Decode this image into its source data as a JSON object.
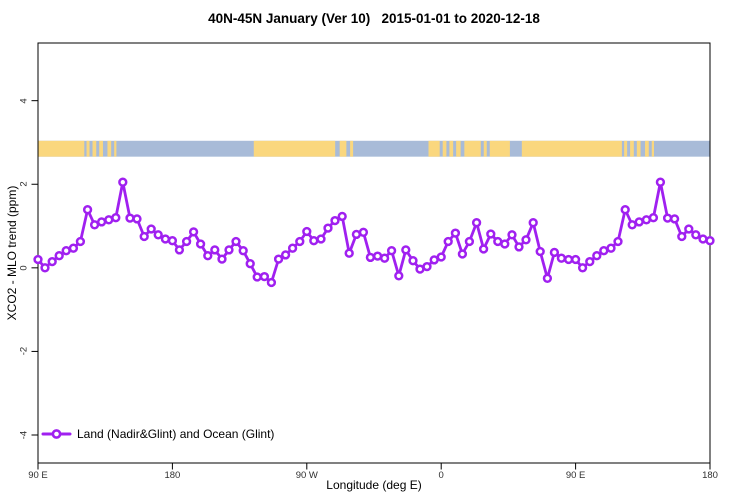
{
  "window_title": "40N-45N January (Ver 10)   2015-01-01 to 2020-12-18",
  "chart_data": {
    "type": "line",
    "title": "40N-45N January (Ver 10)   2015-01-01 to 2020-12-18",
    "xlabel": "Longitude (deg E)",
    "ylabel": "XCO2 - MLO trend (ppm)",
    "xlim": [
      90,
      540
    ],
    "ylim": [
      -4.67,
      5.38
    ],
    "grid": false,
    "x_ticks": [
      {
        "value": 90,
        "label": "90 E"
      },
      {
        "value": 180,
        "label": "180"
      },
      {
        "value": 270,
        "label": "90 W"
      },
      {
        "value": 360,
        "label": "0"
      },
      {
        "value": 450,
        "label": "90 E"
      },
      {
        "value": 540,
        "label": "180"
      }
    ],
    "y_ticks": [
      {
        "value": 4,
        "label": "4"
      },
      {
        "value": 2,
        "label": "2"
      },
      {
        "value": 0,
        "label": "0"
      },
      {
        "value": -2,
        "label": "-2"
      },
      {
        "value": -4,
        "label": "-4"
      }
    ],
    "series": [
      {
        "name": "Land (Nadir&Glint) and Ocean (Glint)",
        "color": "#A020F0",
        "marker": "open-circle",
        "x": [
          90,
          94.7,
          99.5,
          104.2,
          108.9,
          113.7,
          118.4,
          123.2,
          127.9,
          132.6,
          137.4,
          142.1,
          146.8,
          151.6,
          156.3,
          161.1,
          165.8,
          170.5,
          175.3,
          180,
          184.7,
          189.5,
          194.2,
          198.9,
          203.7,
          208.4,
          213.2,
          217.9,
          222.6,
          227.4,
          232.1,
          236.8,
          241.6,
          246.3,
          251.1,
          255.8,
          260.5,
          265.3,
          270,
          274.7,
          279.5,
          284.2,
          288.9,
          293.7,
          298.4,
          303.2,
          307.9,
          312.6,
          317.4,
          322.1,
          326.8,
          331.6,
          336.3,
          341.1,
          345.8,
          350.5,
          355.3,
          360,
          364.7,
          369.5,
          374.2,
          378.9,
          383.7,
          388.4,
          393.2,
          397.9,
          402.6,
          407.4,
          412.1,
          416.8,
          421.6,
          426.3,
          431.1,
          435.8,
          440.5,
          445.3,
          450,
          454.7,
          459.5,
          464.2,
          468.9,
          473.7,
          478.4,
          483.2,
          487.9,
          492.6,
          497.4,
          502.1,
          506.8,
          511.6,
          516.3,
          521.1,
          525.8,
          530.5,
          535.3,
          540
        ],
        "y": [
          0.2,
          0,
          0.15,
          0.29,
          0.41,
          0.47,
          0.63,
          1.39,
          1.03,
          1.1,
          1.15,
          1.2,
          2.05,
          1.19,
          1.17,
          0.75,
          0.93,
          0.79,
          0.69,
          0.65,
          0.43,
          0.63,
          0.86,
          0.57,
          0.29,
          0.43,
          0.21,
          0.43,
          0.63,
          0.41,
          0.1,
          -0.22,
          -0.21,
          -0.35,
          0.21,
          0.31,
          0.47,
          0.63,
          0.87,
          0.65,
          0.69,
          0.95,
          1.13,
          1.23,
          0.35,
          0.8,
          0.85,
          0.25,
          0.28,
          0.23,
          0.41,
          -0.19,
          0.43,
          0.17,
          -0.03,
          0.03,
          0.19,
          0.26,
          0.63,
          0.83,
          0.33,
          0.63,
          1.08,
          0.45,
          0.81,
          0.63,
          0.57,
          0.79,
          0.5,
          0.67,
          1.08,
          0.39,
          -0.25,
          0.37,
          0.23,
          0.2,
          0.2,
          0,
          0.15,
          0.29,
          0.41,
          0.47,
          0.63,
          1.39,
          1.03,
          1.1,
          1.15,
          1.2,
          2.05,
          1.19,
          1.17,
          0.75,
          0.93,
          0.79,
          0.69,
          0.65
        ]
      }
    ],
    "land_ocean_band": {
      "y_range": [
        2.66,
        3.04
      ],
      "ocean_color": "#A8BBD8",
      "land_color": "#FAD77E",
      "land_segments": [
        [
          90,
          121
        ],
        [
          122.5,
          124.5
        ],
        [
          126.5,
          129
        ],
        [
          131,
          133.5
        ],
        [
          136.5,
          139
        ],
        [
          141,
          142.5
        ],
        [
          234.5,
          289
        ],
        [
          292,
          296.5
        ],
        [
          299,
          301
        ],
        [
          351.5,
          359
        ],
        [
          361,
          363.5
        ],
        [
          365.5,
          368
        ],
        [
          370,
          373
        ],
        [
          375.5,
          386.5
        ],
        [
          388.5,
          390.5
        ],
        [
          392.5,
          406
        ],
        [
          414,
          481
        ],
        [
          482.5,
          484.5
        ],
        [
          486.5,
          489
        ],
        [
          491,
          493.5
        ],
        [
          496.5,
          499
        ],
        [
          501,
          502.5
        ]
      ]
    },
    "legend": {
      "position": "bottom-left",
      "entries": [
        {
          "label": "Land (Nadir&Glint) and Ocean (Glint)",
          "color": "#A020F0",
          "marker": "circle-on-line"
        }
      ]
    },
    "axis_color": "#000000",
    "tick_label_color": "#303030"
  }
}
